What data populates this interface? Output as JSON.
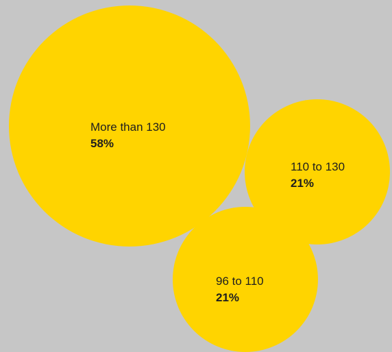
{
  "colors": {
    "background": "#c6c6c6",
    "bubble": "#ffd400",
    "text": "#1e1e1e"
  },
  "chart_data": {
    "type": "bubble",
    "legend": "none",
    "grid": false,
    "series": [
      {
        "category": "More than 130",
        "value": 58,
        "value_label": "58%"
      },
      {
        "category": "110 to 130",
        "value": 21,
        "value_label": "21%"
      },
      {
        "category": "96 to 110",
        "value": 21,
        "value_label": "21%"
      }
    ]
  }
}
